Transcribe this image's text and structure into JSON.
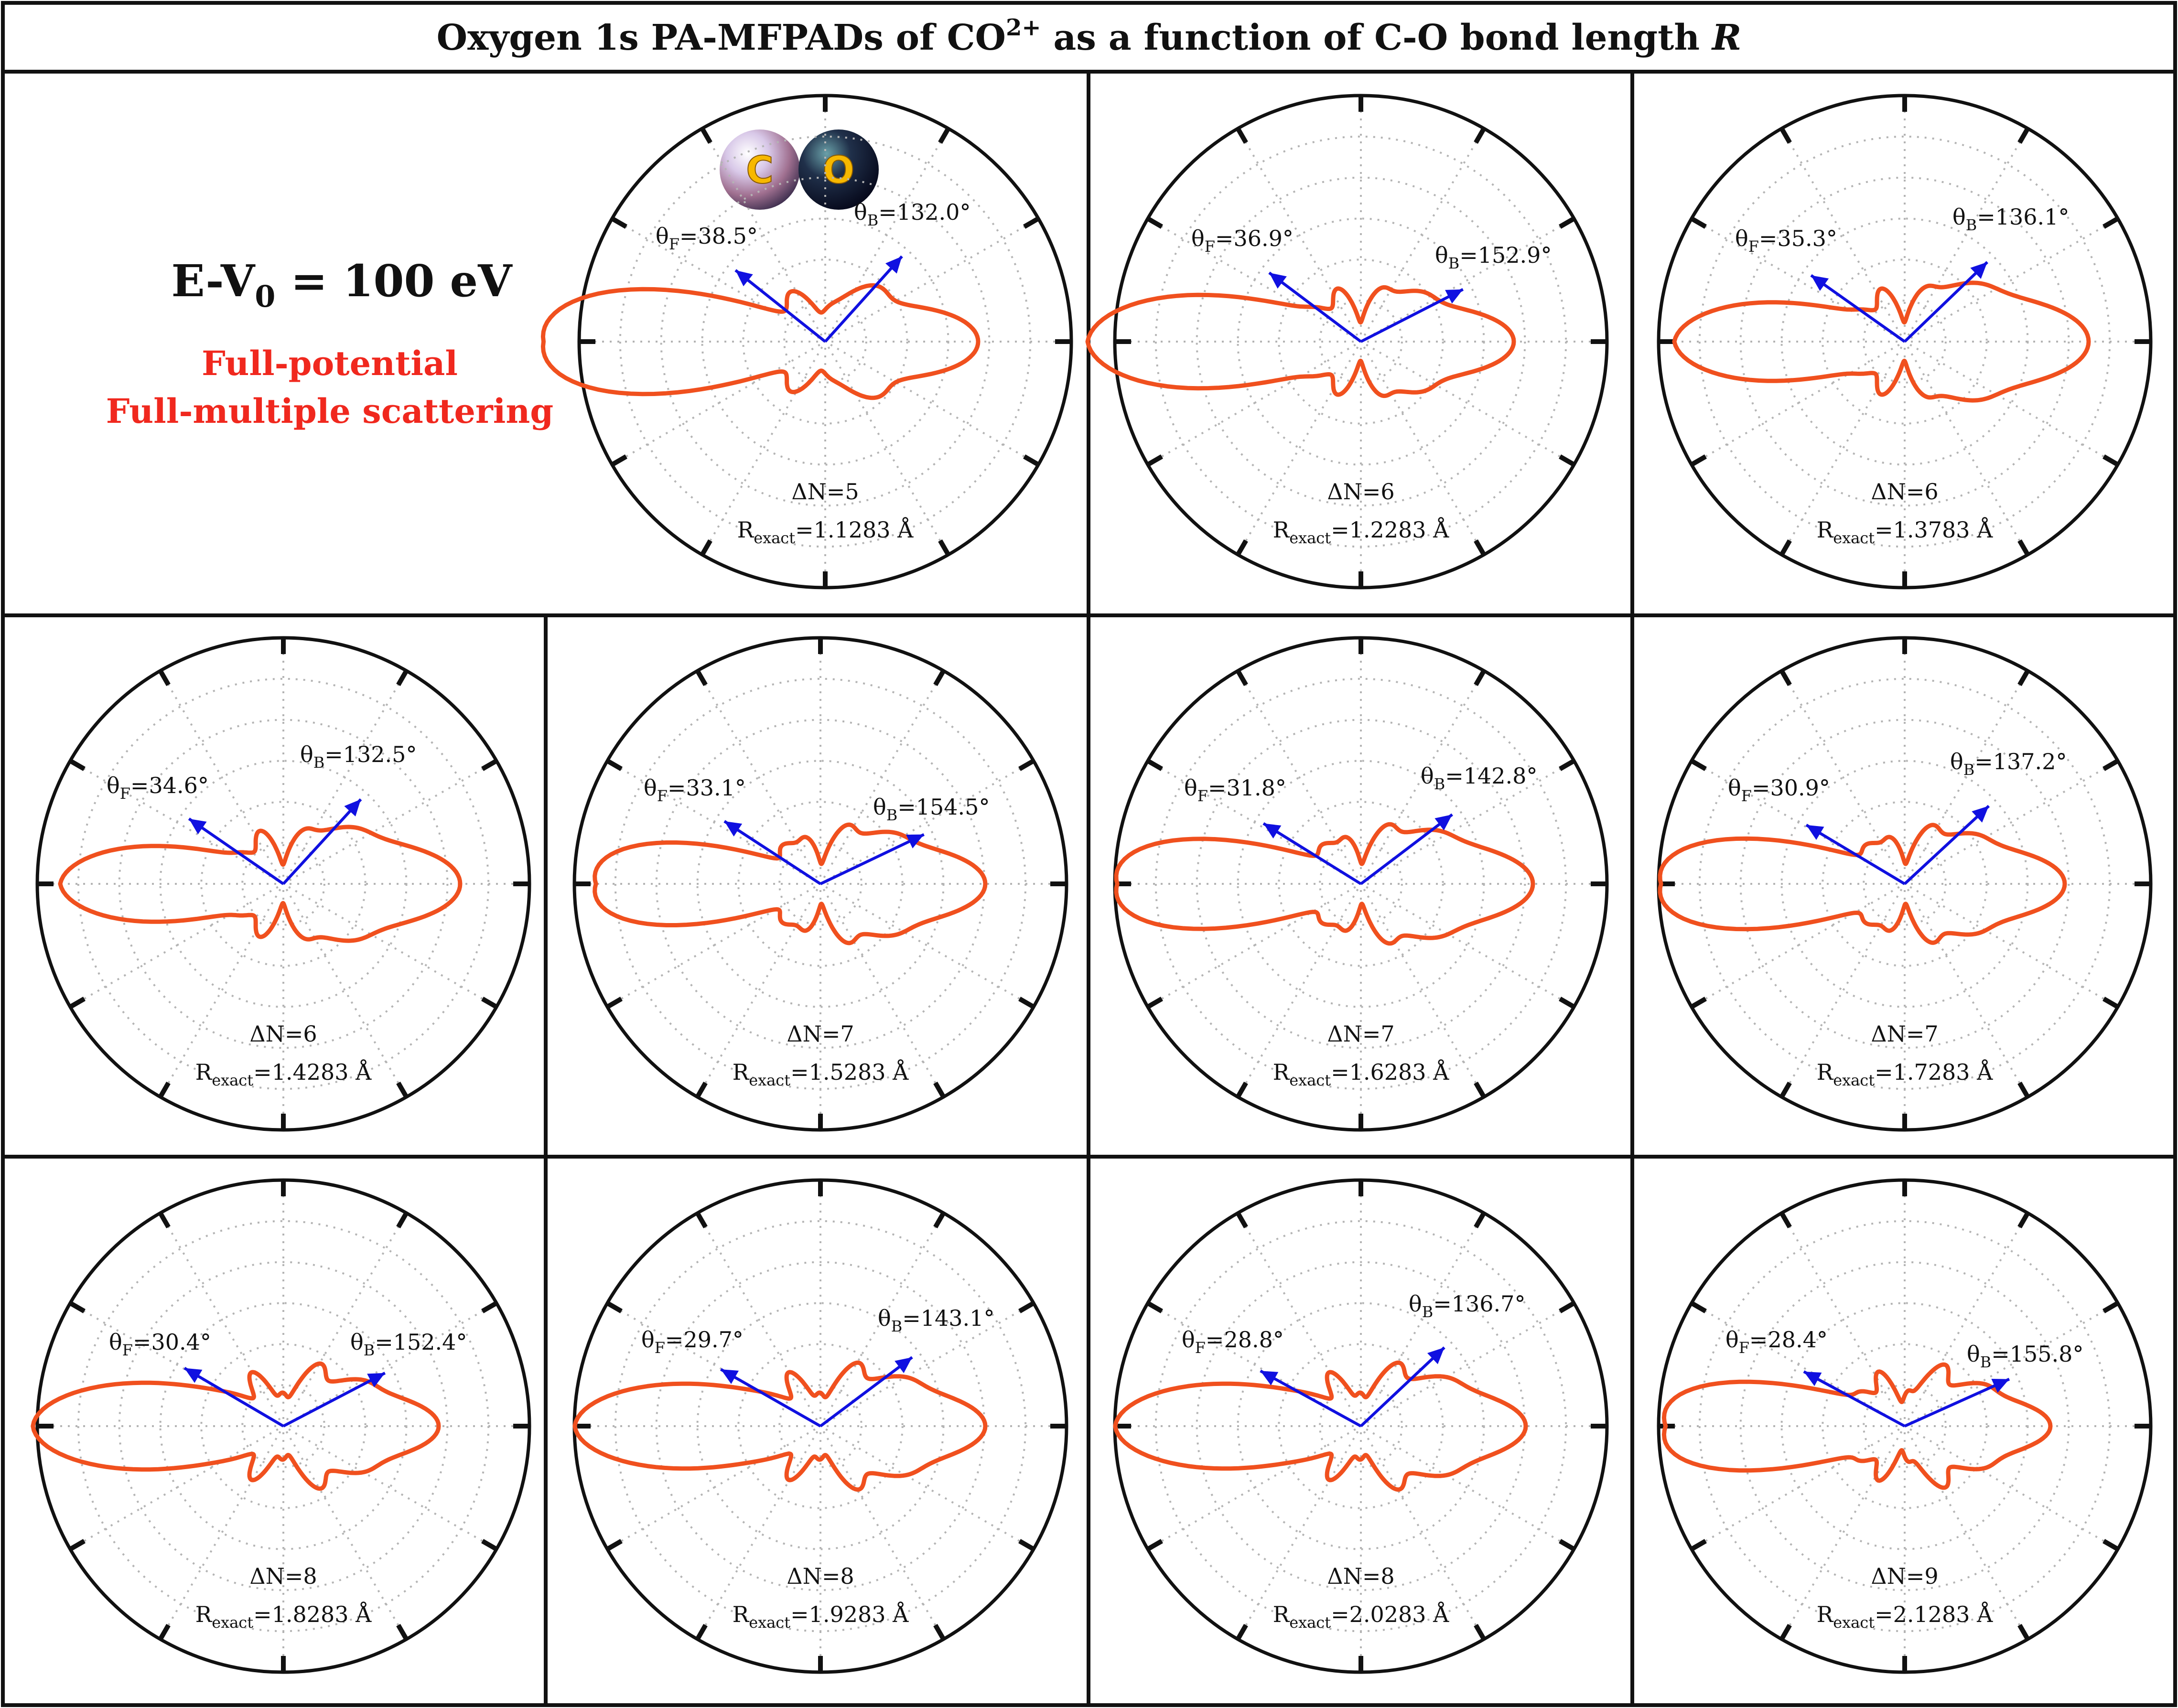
{
  "title": {
    "prefix": "Oxygen 1s PA-MFPADs of CO",
    "superscript": "2+",
    "middle": " as a function of C-O bond length ",
    "symbol": "R"
  },
  "info": {
    "energy_main": "E-V",
    "energy_sub": "0",
    "energy_tail": " = 100 eV",
    "method_line1": "Full-potential",
    "method_line2": "Full-multiple scattering"
  },
  "molecule_icon": {
    "atom1": "C",
    "atom2": "O"
  },
  "colors": {
    "curve": "#f0501e",
    "arrow": "#1010e0",
    "grid": "#b4b4b4",
    "frame": "#111111",
    "method_text": "#f0281e"
  },
  "chart_data": [
    {
      "type": "polar",
      "theta_F": "38.5°",
      "theta_B": "132.0°",
      "theta_F_deg": 38.5,
      "theta_B_deg": 132.0,
      "delta_N_text": "ΔN=5",
      "delta_N": 5,
      "R_text": "=1.1283 Å",
      "R_exact": 1.1283
    },
    {
      "type": "polar",
      "theta_F": "36.9°",
      "theta_B": "152.9°",
      "theta_F_deg": 36.9,
      "theta_B_deg": 152.9,
      "delta_N_text": "ΔN=6",
      "delta_N": 6,
      "R_text": "=1.2283 Å",
      "R_exact": 1.2283
    },
    {
      "type": "polar",
      "theta_F": "35.3°",
      "theta_B": "136.1°",
      "theta_F_deg": 35.3,
      "theta_B_deg": 136.1,
      "delta_N_text": "ΔN=6",
      "delta_N": 6,
      "R_text": "=1.3783 Å",
      "R_exact": 1.3783
    },
    {
      "type": "polar",
      "theta_F": "34.6°",
      "theta_B": "132.5°",
      "theta_F_deg": 34.6,
      "theta_B_deg": 132.5,
      "delta_N_text": "ΔN=6",
      "delta_N": 6,
      "R_text": "=1.4283 Å",
      "R_exact": 1.4283
    },
    {
      "type": "polar",
      "theta_F": "33.1°",
      "theta_B": "154.5°",
      "theta_F_deg": 33.1,
      "theta_B_deg": 154.5,
      "delta_N_text": "ΔN=7",
      "delta_N": 7,
      "R_text": "=1.5283 Å",
      "R_exact": 1.5283
    },
    {
      "type": "polar",
      "theta_F": "31.8°",
      "theta_B": "142.8°",
      "theta_F_deg": 31.8,
      "theta_B_deg": 142.8,
      "delta_N_text": "ΔN=7",
      "delta_N": 7,
      "R_text": "=1.6283 Å",
      "R_exact": 1.6283
    },
    {
      "type": "polar",
      "theta_F": "30.9°",
      "theta_B": "137.2°",
      "theta_F_deg": 30.9,
      "theta_B_deg": 137.2,
      "delta_N_text": "ΔN=7",
      "delta_N": 7,
      "R_text": "=1.7283 Å",
      "R_exact": 1.7283
    },
    {
      "type": "polar",
      "theta_F": "30.4°",
      "theta_B": "152.4°",
      "theta_F_deg": 30.4,
      "theta_B_deg": 152.4,
      "delta_N_text": "ΔN=8",
      "delta_N": 8,
      "R_text": "=1.8283 Å",
      "R_exact": 1.8283
    },
    {
      "type": "polar",
      "theta_F": "29.7°",
      "theta_B": "143.1°",
      "theta_F_deg": 29.7,
      "theta_B_deg": 143.1,
      "delta_N_text": "ΔN=8",
      "delta_N": 8,
      "R_text": "=1.9283 Å",
      "R_exact": 1.9283
    },
    {
      "type": "polar",
      "theta_F": "28.8°",
      "theta_B": "136.7°",
      "theta_F_deg": 28.8,
      "theta_B_deg": 136.7,
      "delta_N_text": "ΔN=8",
      "delta_N": 8,
      "R_text": "=2.0283 Å",
      "R_exact": 2.0283
    },
    {
      "type": "polar",
      "theta_F": "28.4°",
      "theta_B": "155.8°",
      "theta_F_deg": 28.4,
      "theta_B_deg": 155.8,
      "delta_N_text": "ΔN=9",
      "delta_N": 9,
      "R_text": "=2.1283 Å",
      "R_exact": 2.1283
    }
  ]
}
